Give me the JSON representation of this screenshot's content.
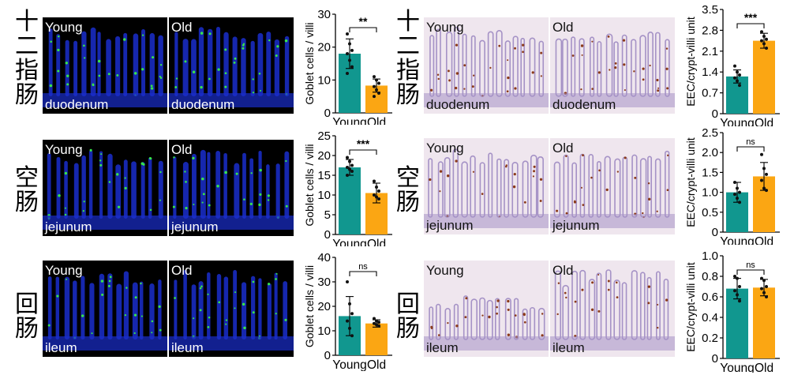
{
  "rows": [
    {
      "region_cn": "十二指肠",
      "region_en": "duodenum"
    },
    {
      "region_cn": "空肠",
      "region_en": "jejunum"
    },
    {
      "region_cn": "回肠",
      "region_en": "ileum"
    }
  ],
  "panel_labels": {
    "young": "Young",
    "old": "Old"
  },
  "colors": {
    "young": "#11978f",
    "old": "#fba613",
    "nuclei": "#1a2ecc",
    "goblet": "#37e64a",
    "ihc_bg": "#efe6ee",
    "ihc_tissue": "#a592c6",
    "eec_stain": "#8b3a1a"
  },
  "chart_data": [
    {
      "type": "bar",
      "categories": [
        "Young",
        "Old"
      ],
      "values": [
        18,
        8.3
      ],
      "errors": [
        4.5,
        2.0
      ],
      "points": [
        [
          24,
          21,
          19,
          18,
          16,
          14,
          12
        ],
        [
          11,
          10,
          9,
          8,
          7,
          6,
          5
        ]
      ],
      "ylabel": "Goblet cells / villi",
      "ylim": [
        0,
        30
      ],
      "yticks": [
        0,
        10,
        20,
        30
      ],
      "tick_labels": [
        "0",
        "10",
        "20",
        "30"
      ],
      "significance": "**"
    },
    {
      "type": "bar",
      "categories": [
        "Young",
        "Old"
      ],
      "values": [
        17.0,
        10.5
      ],
      "errors": [
        2.0,
        2.5
      ],
      "points": [
        [
          19.5,
          18.5,
          17.5,
          17,
          16.5,
          16,
          15
        ],
        [
          13.5,
          12,
          11,
          10,
          9.5,
          9
        ]
      ],
      "ylabel": "Goblet cells / villi",
      "ylim": [
        0,
        25
      ],
      "yticks": [
        0,
        5,
        10,
        15,
        20,
        25
      ],
      "tick_labels": [
        "0",
        "5",
        "10",
        "15",
        "20",
        "25"
      ],
      "significance": "***"
    },
    {
      "type": "bar",
      "categories": [
        "Young",
        "Old"
      ],
      "values": [
        16,
        13
      ],
      "errors": [
        8,
        1.5
      ],
      "points": [
        [
          30,
          21,
          17,
          14,
          11,
          8
        ],
        [
          15,
          14,
          13.5,
          13,
          12.5,
          12
        ]
      ],
      "ylabel": "Goblet cells / villi",
      "ylim": [
        0,
        40
      ],
      "yticks": [
        0,
        10,
        20,
        30,
        40
      ],
      "tick_labels": [
        "0",
        "10",
        "20",
        "30",
        "40"
      ],
      "significance": "ns"
    },
    {
      "type": "bar",
      "categories": [
        "Young",
        "Old"
      ],
      "values": [
        1.25,
        2.45
      ],
      "errors": [
        0.22,
        0.25
      ],
      "points": [
        [
          1.6,
          1.4,
          1.3,
          1.2,
          1.1,
          0.95
        ],
        [
          2.75,
          2.6,
          2.5,
          2.45,
          2.35,
          2.2
        ]
      ],
      "ylabel": "EEC/crypt-villi unit",
      "ylim": [
        0,
        3.5
      ],
      "yticks": [
        0,
        0.7,
        1.4,
        2.1,
        2.8,
        3.5
      ],
      "tick_labels": [
        "0",
        "0.7",
        "1.4",
        "2.1",
        "2.8",
        "3.5"
      ],
      "significance": "***"
    },
    {
      "type": "bar",
      "categories": [
        "Young",
        "Old"
      ],
      "values": [
        1.0,
        1.4
      ],
      "errors": [
        0.25,
        0.35
      ],
      "points": [
        [
          1.25,
          1.1,
          1.0,
          0.95,
          0.85,
          0.75
        ],
        [
          1.95,
          1.6,
          1.45,
          1.3,
          1.1,
          1.05
        ]
      ],
      "ylabel": "EEC/crypt-villi unit",
      "ylim": [
        0,
        2.5
      ],
      "yticks": [
        0,
        0.5,
        1.0,
        1.5,
        2.0,
        2.5
      ],
      "tick_labels": [
        "0",
        "0.5",
        "1.0",
        "1.5",
        "2.0",
        "2.5"
      ],
      "significance": "ns"
    },
    {
      "type": "bar",
      "categories": [
        "Young",
        "Old"
      ],
      "values": [
        0.68,
        0.69
      ],
      "errors": [
        0.1,
        0.08
      ],
      "points": [
        [
          0.8,
          0.78,
          0.7,
          0.66,
          0.62,
          0.56
        ],
        [
          0.78,
          0.76,
          0.7,
          0.68,
          0.64,
          0.6
        ]
      ],
      "ylabel": "EEC/crypt-villi unit",
      "ylim": [
        0,
        1.0
      ],
      "yticks": [
        0,
        0.2,
        0.4,
        0.6,
        0.8,
        1.0
      ],
      "tick_labels": [
        "0",
        "0.2",
        "0.4",
        "0.6",
        "0.8",
        "1.0"
      ],
      "significance": "ns"
    }
  ]
}
